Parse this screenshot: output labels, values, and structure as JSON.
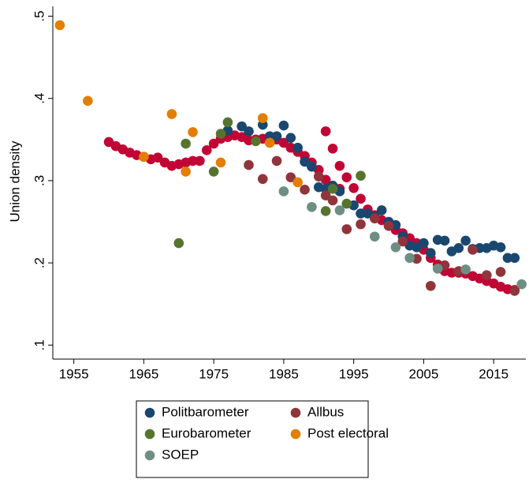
{
  "chart_data": {
    "type": "scatter",
    "ylabel": "Union density",
    "xlim": [
      1952,
      2019.6
    ],
    "ylim": [
      0.083,
      0.512
    ],
    "xticks": [
      1955,
      1965,
      1975,
      1985,
      1995,
      2005,
      2015
    ],
    "yticks": [
      {
        "value": 0.1,
        "label": ".1"
      },
      {
        "value": 0.2,
        "label": ".2"
      },
      {
        "value": 0.3,
        "label": ".3"
      },
      {
        "value": 0.4,
        "label": ".4"
      },
      {
        "value": 0.5,
        "label": ".5"
      }
    ],
    "legend": "bottom",
    "series": [
      {
        "color": "#c10534",
        "x": [
          1960,
          1961,
          1962,
          1963,
          1964,
          1965,
          1966,
          1967,
          1968,
          1969,
          1970,
          1971,
          1972,
          1973,
          1974,
          1975,
          1976,
          1977,
          1978,
          1979,
          1980,
          1981,
          1982,
          1983,
          1984,
          1985,
          1986,
          1987,
          1988,
          1989,
          1990,
          1991,
          1991,
          1992,
          1992,
          1993,
          1993,
          1994,
          1995,
          1996,
          1997,
          1998,
          1999,
          2000,
          2001,
          2002,
          2003,
          2004,
          2005,
          2006,
          2007,
          2008,
          2009,
          2010,
          2011,
          2012,
          2013,
          2014,
          2015,
          2016,
          2017,
          2018
        ],
        "values": [
          0.347,
          0.342,
          0.338,
          0.334,
          0.331,
          0.329,
          0.326,
          0.328,
          0.322,
          0.318,
          0.32,
          0.322,
          0.324,
          0.324,
          0.337,
          0.345,
          0.351,
          0.353,
          0.355,
          0.353,
          0.349,
          0.35,
          0.351,
          0.35,
          0.35,
          0.346,
          0.34,
          0.335,
          0.33,
          0.322,
          0.313,
          0.301,
          0.36,
          0.292,
          0.339,
          0.29,
          0.318,
          0.304,
          0.291,
          0.278,
          0.265,
          0.258,
          0.252,
          0.245,
          0.24,
          0.236,
          0.23,
          0.224,
          0.216,
          0.206,
          0.198,
          0.19,
          0.188,
          0.188,
          0.187,
          0.184,
          0.181,
          0.178,
          0.175,
          0.171,
          0.168,
          0.167
        ]
      },
      {
        "name": "Politbarometer",
        "color": "#1a476f",
        "x": [
          1977,
          1979,
          1980,
          1982,
          1983,
          1984,
          1985,
          1986,
          1987,
          1988,
          1989,
          1990,
          1991,
          1992,
          1993,
          1995,
          1996,
          1997,
          1998,
          1999,
          2000,
          2001,
          2002,
          2003,
          2004,
          2005,
          2006,
          2007,
          2008,
          2009,
          2010,
          2011,
          2012,
          2013,
          2014,
          2015,
          2016,
          2017,
          2018
        ],
        "values": [
          0.361,
          0.366,
          0.36,
          0.368,
          0.354,
          0.354,
          0.367,
          0.352,
          0.34,
          0.323,
          0.317,
          0.292,
          0.29,
          0.294,
          0.287,
          0.27,
          0.26,
          0.26,
          0.256,
          0.264,
          0.25,
          0.246,
          0.232,
          0.221,
          0.219,
          0.224,
          0.212,
          0.228,
          0.227,
          0.214,
          0.218,
          0.227,
          0.217,
          0.218,
          0.218,
          0.221,
          0.219,
          0.206,
          0.206
        ]
      },
      {
        "name": "Allbus",
        "color": "#90353b",
        "x": [
          1980,
          1982,
          1984,
          1986,
          1988,
          1990,
          1991,
          1992,
          1994,
          1996,
          1998,
          2000,
          2002,
          2004,
          2006,
          2008,
          2010,
          2012,
          2014,
          2016,
          2018
        ],
        "values": [
          0.319,
          0.302,
          0.324,
          0.304,
          0.289,
          0.305,
          0.282,
          0.276,
          0.241,
          0.247,
          0.254,
          0.245,
          0.226,
          0.205,
          0.172,
          0.197,
          0.19,
          0.216,
          0.185,
          0.189,
          0.166
        ]
      },
      {
        "name": "Eurobarometer",
        "color": "#55752f",
        "x": [
          1970,
          1971,
          1975,
          1976,
          1977,
          1981,
          1991,
          1992,
          1994,
          1996
        ],
        "values": [
          0.224,
          0.345,
          0.311,
          0.357,
          0.371,
          0.348,
          0.263,
          0.29,
          0.272,
          0.306
        ]
      },
      {
        "name": "Post electoral",
        "color": "#e37e00",
        "x": [
          1953,
          1957,
          1965,
          1969,
          1971,
          1972,
          1976,
          1982,
          1983,
          1987
        ],
        "values": [
          0.489,
          0.397,
          0.329,
          0.381,
          0.311,
          0.359,
          0.322,
          0.376,
          0.346,
          0.298
        ]
      },
      {
        "name": "SOEP",
        "color": "#6e8e84",
        "x": [
          1985,
          1989,
          1993,
          1998,
          2001,
          2003,
          2007,
          2011,
          2019
        ],
        "values": [
          0.287,
          0.268,
          0.264,
          0.232,
          0.219,
          0.206,
          0.193,
          0.192,
          0.174
        ]
      }
    ]
  }
}
